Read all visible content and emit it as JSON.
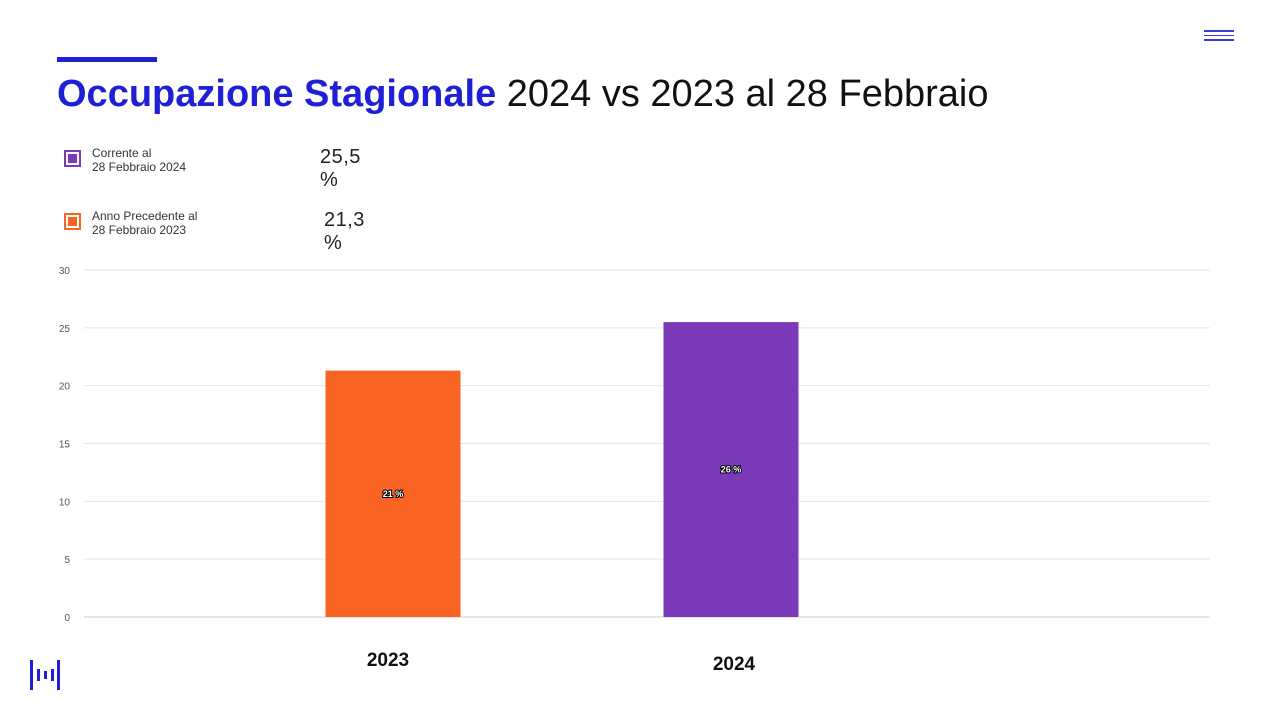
{
  "title": {
    "bold": "Occupazione Stagionale",
    "rest": " 2024 vs 2023 al 28 Febbraio"
  },
  "legend": [
    {
      "label_line1": "Corrente al",
      "label_line2": "28 Febbraio 2024",
      "value": "25,5 %",
      "color": "#7a3ab8"
    },
    {
      "label_line1": "Anno Precedente al",
      "label_line2": "28 Febbraio 2023",
      "value": "21,3 %",
      "color": "#f96424"
    }
  ],
  "icons": {
    "menu": "hamburger-menu-icon",
    "logo": "brand-bars-logo-icon"
  },
  "colors": {
    "accent": "#1f1fd6",
    "grid": "#e6e6e6"
  },
  "chart_data": {
    "type": "bar",
    "categories": [
      "2023",
      "2024"
    ],
    "values": [
      21.3,
      25.5
    ],
    "data_labels": [
      "21 %",
      "26 %"
    ],
    "bar_colors": [
      "#f96424",
      "#7a3ab8"
    ],
    "ylim": [
      0,
      30
    ],
    "yticks": [
      0,
      5,
      10,
      15,
      20,
      25,
      30
    ],
    "grid": true,
    "legend": "top-left"
  }
}
